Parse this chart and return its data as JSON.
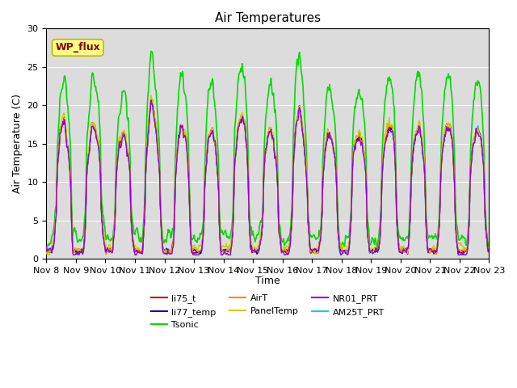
{
  "title": "Air Temperatures",
  "xlabel": "Time",
  "ylabel": "Air Temperature (C)",
  "ylim": [
    0,
    30
  ],
  "background_color": "#dcdcdc",
  "fig_background": "#ffffff",
  "grid_color": "#ffffff",
  "x_tick_labels": [
    "Nov 8",
    "Nov 9",
    "Nov 10",
    "Nov 11",
    "Nov 12",
    "Nov 13",
    "Nov 14",
    "Nov 15",
    "Nov 16",
    "Nov 17",
    "Nov 18",
    "Nov 19",
    "Nov 20",
    "Nov 21",
    "Nov 22",
    "Nov 23"
  ],
  "wp_flux_label": "WP_flux",
  "wp_flux_bg": "#ffff88",
  "wp_flux_border": "#bbbb00",
  "wp_flux_text_color": "#880000",
  "series": [
    {
      "label": "li75_t",
      "color": "#cc0000",
      "lw": 1.0,
      "zorder": 4
    },
    {
      "label": "li77_temp",
      "color": "#0000cc",
      "lw": 1.0,
      "zorder": 4
    },
    {
      "label": "Tsonic",
      "color": "#00dd00",
      "lw": 1.2,
      "zorder": 3
    },
    {
      "label": "AirT",
      "color": "#ff8800",
      "lw": 1.0,
      "zorder": 4
    },
    {
      "label": "PanelTemp",
      "color": "#cccc00",
      "lw": 1.0,
      "zorder": 4
    },
    {
      "label": "NR01_PRT",
      "color": "#9900cc",
      "lw": 1.0,
      "zorder": 5
    },
    {
      "label": "AM25T_PRT",
      "color": "#00ccff",
      "lw": 1.2,
      "zorder": 3
    }
  ],
  "title_fontsize": 11,
  "axis_label_fontsize": 9,
  "tick_fontsize": 8,
  "legend_ncol": 3,
  "legend_fontsize": 8
}
